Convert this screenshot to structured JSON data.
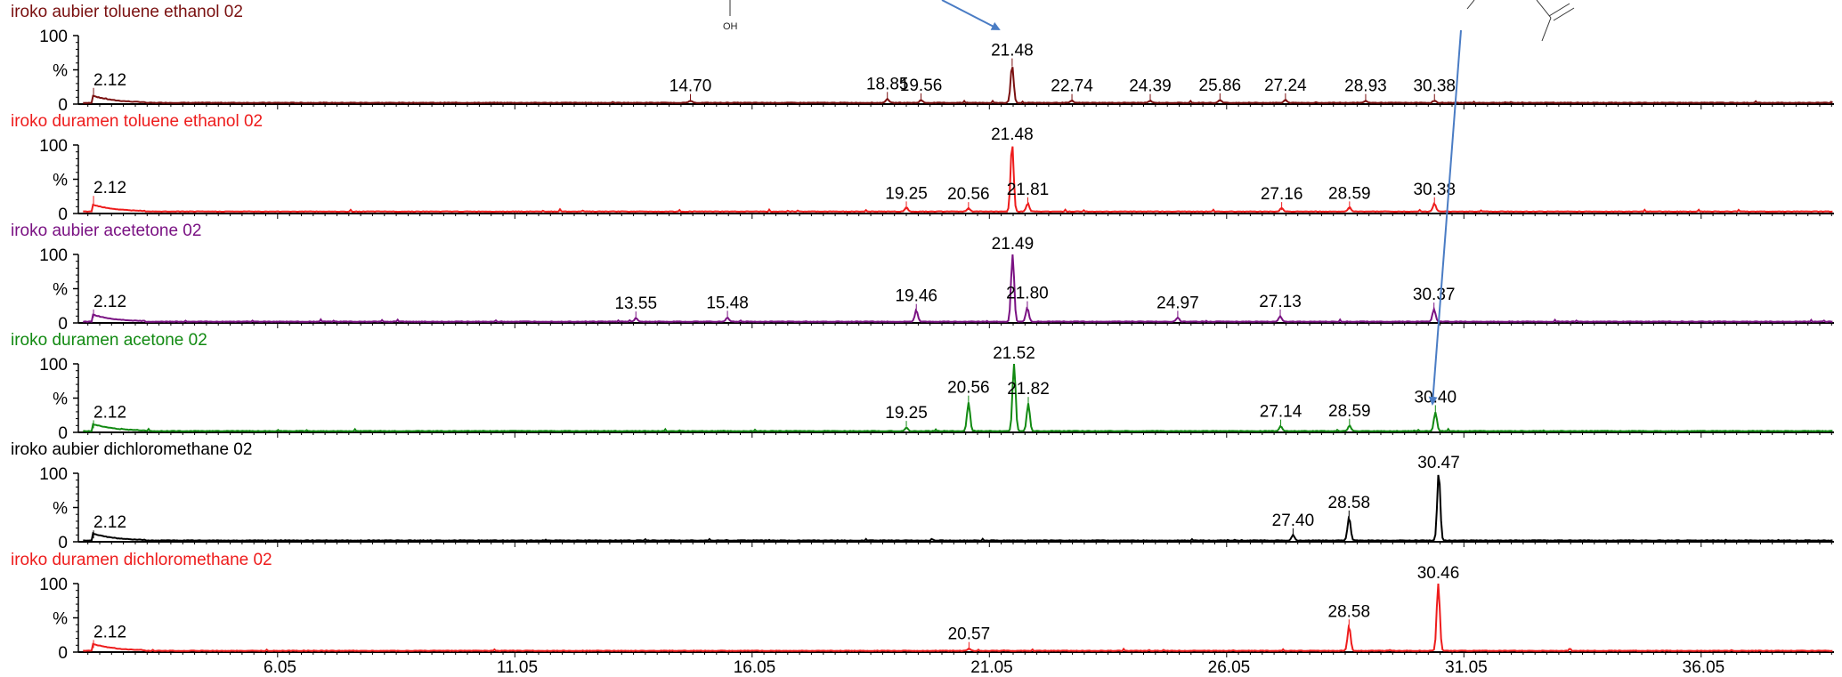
{
  "chart_data": {
    "type": "line",
    "xlim": [
      1.8,
      38.8
    ],
    "ylim": [
      0,
      100
    ],
    "x_ticks": [
      "6.05",
      "11.05",
      "16.05",
      "21.05",
      "26.05",
      "31.05",
      "36.05"
    ],
    "y_tick_labels": [
      "100",
      "%",
      "0"
    ],
    "annotation_oh": "OH",
    "arrows_color": "#4a7cc4",
    "panels": [
      {
        "label": "iroko aubier toluene ethanol 02",
        "color": "#7a1010",
        "peaks": [
          {
            "x": 2.12,
            "y": 12,
            "label": "2.12"
          },
          {
            "x": 14.7,
            "y": 3,
            "label": "14.70"
          },
          {
            "x": 18.85,
            "y": 6,
            "label": "18.85"
          },
          {
            "x": 19.56,
            "y": 4,
            "label": "19.56"
          },
          {
            "x": 21.48,
            "y": 55,
            "label": "21.48"
          },
          {
            "x": 22.74,
            "y": 3,
            "label": "22.74"
          },
          {
            "x": 24.39,
            "y": 3,
            "label": "24.39"
          },
          {
            "x": 25.86,
            "y": 4,
            "label": "25.86"
          },
          {
            "x": 27.24,
            "y": 4,
            "label": "27.24"
          },
          {
            "x": 28.93,
            "y": 3,
            "label": "28.93"
          },
          {
            "x": 30.38,
            "y": 3,
            "label": "30.38"
          }
        ]
      },
      {
        "label": "iroko duramen toluene ethanol 02",
        "color": "#ee1c1c",
        "peaks": [
          {
            "x": 2.12,
            "y": 14,
            "label": "2.12"
          },
          {
            "x": 19.25,
            "y": 6,
            "label": "19.25"
          },
          {
            "x": 20.56,
            "y": 5,
            "label": "20.56"
          },
          {
            "x": 21.48,
            "y": 100,
            "label": "21.48"
          },
          {
            "x": 21.81,
            "y": 12,
            "label": "21.81"
          },
          {
            "x": 27.16,
            "y": 5,
            "label": "27.16"
          },
          {
            "x": 28.59,
            "y": 6,
            "label": "28.59"
          },
          {
            "x": 30.38,
            "y": 12,
            "label": "30.38"
          }
        ]
      },
      {
        "label": "iroko aubier acetetone 02",
        "color": "#7a1283",
        "peaks": [
          {
            "x": 2.12,
            "y": 8,
            "label": "2.12"
          },
          {
            "x": 13.55,
            "y": 5,
            "label": "13.55"
          },
          {
            "x": 15.48,
            "y": 6,
            "label": "15.48"
          },
          {
            "x": 19.46,
            "y": 16,
            "label": "19.46"
          },
          {
            "x": 21.49,
            "y": 100,
            "label": "21.49"
          },
          {
            "x": 21.8,
            "y": 20,
            "label": "21.80"
          },
          {
            "x": 24.97,
            "y": 6,
            "label": "24.97"
          },
          {
            "x": 27.13,
            "y": 8,
            "label": "27.13"
          },
          {
            "x": 30.37,
            "y": 18,
            "label": "30.37"
          }
        ]
      },
      {
        "label": "iroko duramen acetone 02",
        "color": "#128a12",
        "peaks": [
          {
            "x": 2.12,
            "y": 6,
            "label": "2.12"
          },
          {
            "x": 19.25,
            "y": 5,
            "label": "19.25"
          },
          {
            "x": 20.56,
            "y": 42,
            "label": "20.56"
          },
          {
            "x": 21.52,
            "y": 100,
            "label": "21.52"
          },
          {
            "x": 21.82,
            "y": 40,
            "label": "21.82"
          },
          {
            "x": 27.14,
            "y": 7,
            "label": "27.14"
          },
          {
            "x": 28.59,
            "y": 8,
            "label": "28.59"
          },
          {
            "x": 30.4,
            "y": 28,
            "label": "30.40"
          }
        ]
      },
      {
        "label": "iroko aubier  dichloromethane 02",
        "color": "#000000",
        "peaks": [
          {
            "x": 2.12,
            "y": 5,
            "label": "2.12"
          },
          {
            "x": 27.4,
            "y": 8,
            "label": "27.40"
          },
          {
            "x": 28.58,
            "y": 34,
            "label": "28.58"
          },
          {
            "x": 30.47,
            "y": 100,
            "label": "30.47"
          }
        ]
      },
      {
        "label": "iroko duramen dichloromethane 02",
        "color": "#ee1c1c",
        "peaks": [
          {
            "x": 2.12,
            "y": 6,
            "label": "2.12"
          },
          {
            "x": 20.57,
            "y": 3,
            "label": "20.57"
          },
          {
            "x": 28.58,
            "y": 36,
            "label": "28.58"
          },
          {
            "x": 30.46,
            "y": 100,
            "label": "30.46"
          }
        ]
      }
    ]
  }
}
